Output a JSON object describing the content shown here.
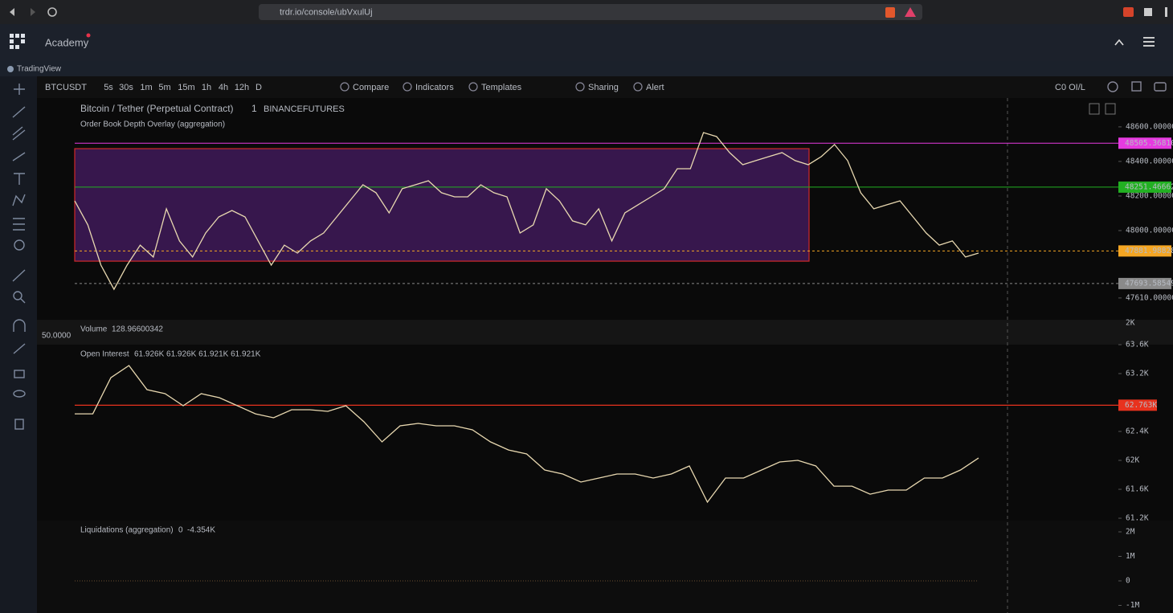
{
  "browser": {
    "url": "trdr.io/console/ubVxulUj"
  },
  "app": {
    "title": "Academy"
  },
  "widget": {
    "title": "TradingView"
  },
  "toolbar": {
    "symbol": "BTCUSDT",
    "intervals": [
      "5s",
      "30s",
      "1m",
      "5m",
      "15m",
      "1h",
      "4h",
      "12h",
      "D"
    ],
    "buttons": [
      "Compare",
      "Indicators",
      "Templates",
      "Sharing",
      "Alert"
    ],
    "oi_mode": "C0 OI/L"
  },
  "price_panel": {
    "title": "Bitcoin / Tether (Perpetual Contract)",
    "interval": "1",
    "exchange": "BINANCEFUTURES",
    "overlay": "Order Book Depth Overlay (aggregation)",
    "ylim": [
      47484,
      48753
    ],
    "yticks": [
      {
        "value": 48600,
        "label": "48600.00000"
      },
      {
        "value": 48400,
        "label": "48400.00000"
      },
      {
        "value": 48200,
        "label": "48200.00000"
      },
      {
        "value": 48000,
        "label": "48000.00000"
      },
      {
        "value": 47610,
        "label": "47610.00000"
      }
    ],
    "color": "#e8d8b0",
    "values": [
      48172,
      48033,
      47800,
      47660,
      47800,
      47916,
      47847,
      48126,
      47940,
      47847,
      47986,
      48079,
      48116,
      48079,
      47940,
      47800,
      47916,
      47870,
      47940,
      47986,
      48079,
      48172,
      48265,
      48219,
      48102,
      48242,
      48265,
      48288,
      48219,
      48195,
      48195,
      48265,
      48219,
      48195,
      47986,
      48033,
      48242,
      48172,
      48056,
      48033,
      48126,
      47940,
      48102,
      48149,
      48195,
      48242,
      48358,
      48358,
      48567,
      48544,
      48451,
      48381,
      48405,
      48428,
      48451,
      48405,
      48381,
      48428,
      48498,
      48405,
      48219,
      48126,
      48149,
      48172,
      48079,
      47986,
      47916,
      47940,
      47847,
      47870
    ],
    "box": {
      "top": 48474,
      "bottom": 47823
    },
    "levels": [
      {
        "value": 48505.3681,
        "label": "48505.36810",
        "color": "#e63be0"
      },
      {
        "value": 48251.46662,
        "label": "48251.46662",
        "color": "#22b022"
      },
      {
        "value": 47881.98828,
        "label": "47881.98828",
        "color": "#f5a623"
      },
      {
        "value": 47693.58549,
        "label": "47693.58549",
        "color": "#8a8a8a"
      }
    ]
  },
  "volume_panel": {
    "title": "Volume",
    "value": 128.96600342,
    "left_label": "50.0000",
    "axis_label": "2K"
  },
  "oi_panel": {
    "title": "Open Interest",
    "readout": "61.926K 61.926K 61.921K 61.921K",
    "ylim": [
      61.167,
      63.589
    ],
    "yticks": [
      {
        "value": 63.6,
        "label": "63.6K"
      },
      {
        "value": 63.2,
        "label": "63.2K"
      },
      {
        "value": 62.4,
        "label": "62.4K"
      },
      {
        "value": 62,
        "label": "62K"
      },
      {
        "value": 61.6,
        "label": "61.6K"
      },
      {
        "value": 61.2,
        "label": "61.2K"
      }
    ],
    "color": "#e8d8b0",
    "values": [
      62.644,
      62.644,
      63.144,
      63.311,
      62.978,
      62.922,
      62.756,
      62.922,
      62.867,
      62.756,
      62.644,
      62.589,
      62.7,
      62.7,
      62.678,
      62.756,
      62.533,
      62.256,
      62.478,
      62.511,
      62.478,
      62.478,
      62.422,
      62.256,
      62.144,
      62.089,
      61.867,
      61.811,
      61.7,
      61.756,
      61.811,
      61.811,
      61.756,
      61.811,
      61.922,
      61.422,
      61.756,
      61.756,
      61.867,
      61.978,
      62.0,
      61.922,
      61.644,
      61.644,
      61.533,
      61.589,
      61.589,
      61.756,
      61.756,
      61.867,
      62.033
    ],
    "level": {
      "value": 62.763,
      "label": "62.763K",
      "color": "#e8321e"
    }
  },
  "liq_panel": {
    "title": "Liquidations (aggregation)",
    "value_a": "0",
    "value_b": "-4.354K",
    "ylim": [
      -1311000,
      2393000
    ],
    "yticks": [
      {
        "value": 2000000,
        "label": "2M"
      },
      {
        "value": 1000000,
        "label": "1M"
      },
      0,
      {
        "value": -1000000,
        "label": "-1M"
      }
    ]
  }
}
